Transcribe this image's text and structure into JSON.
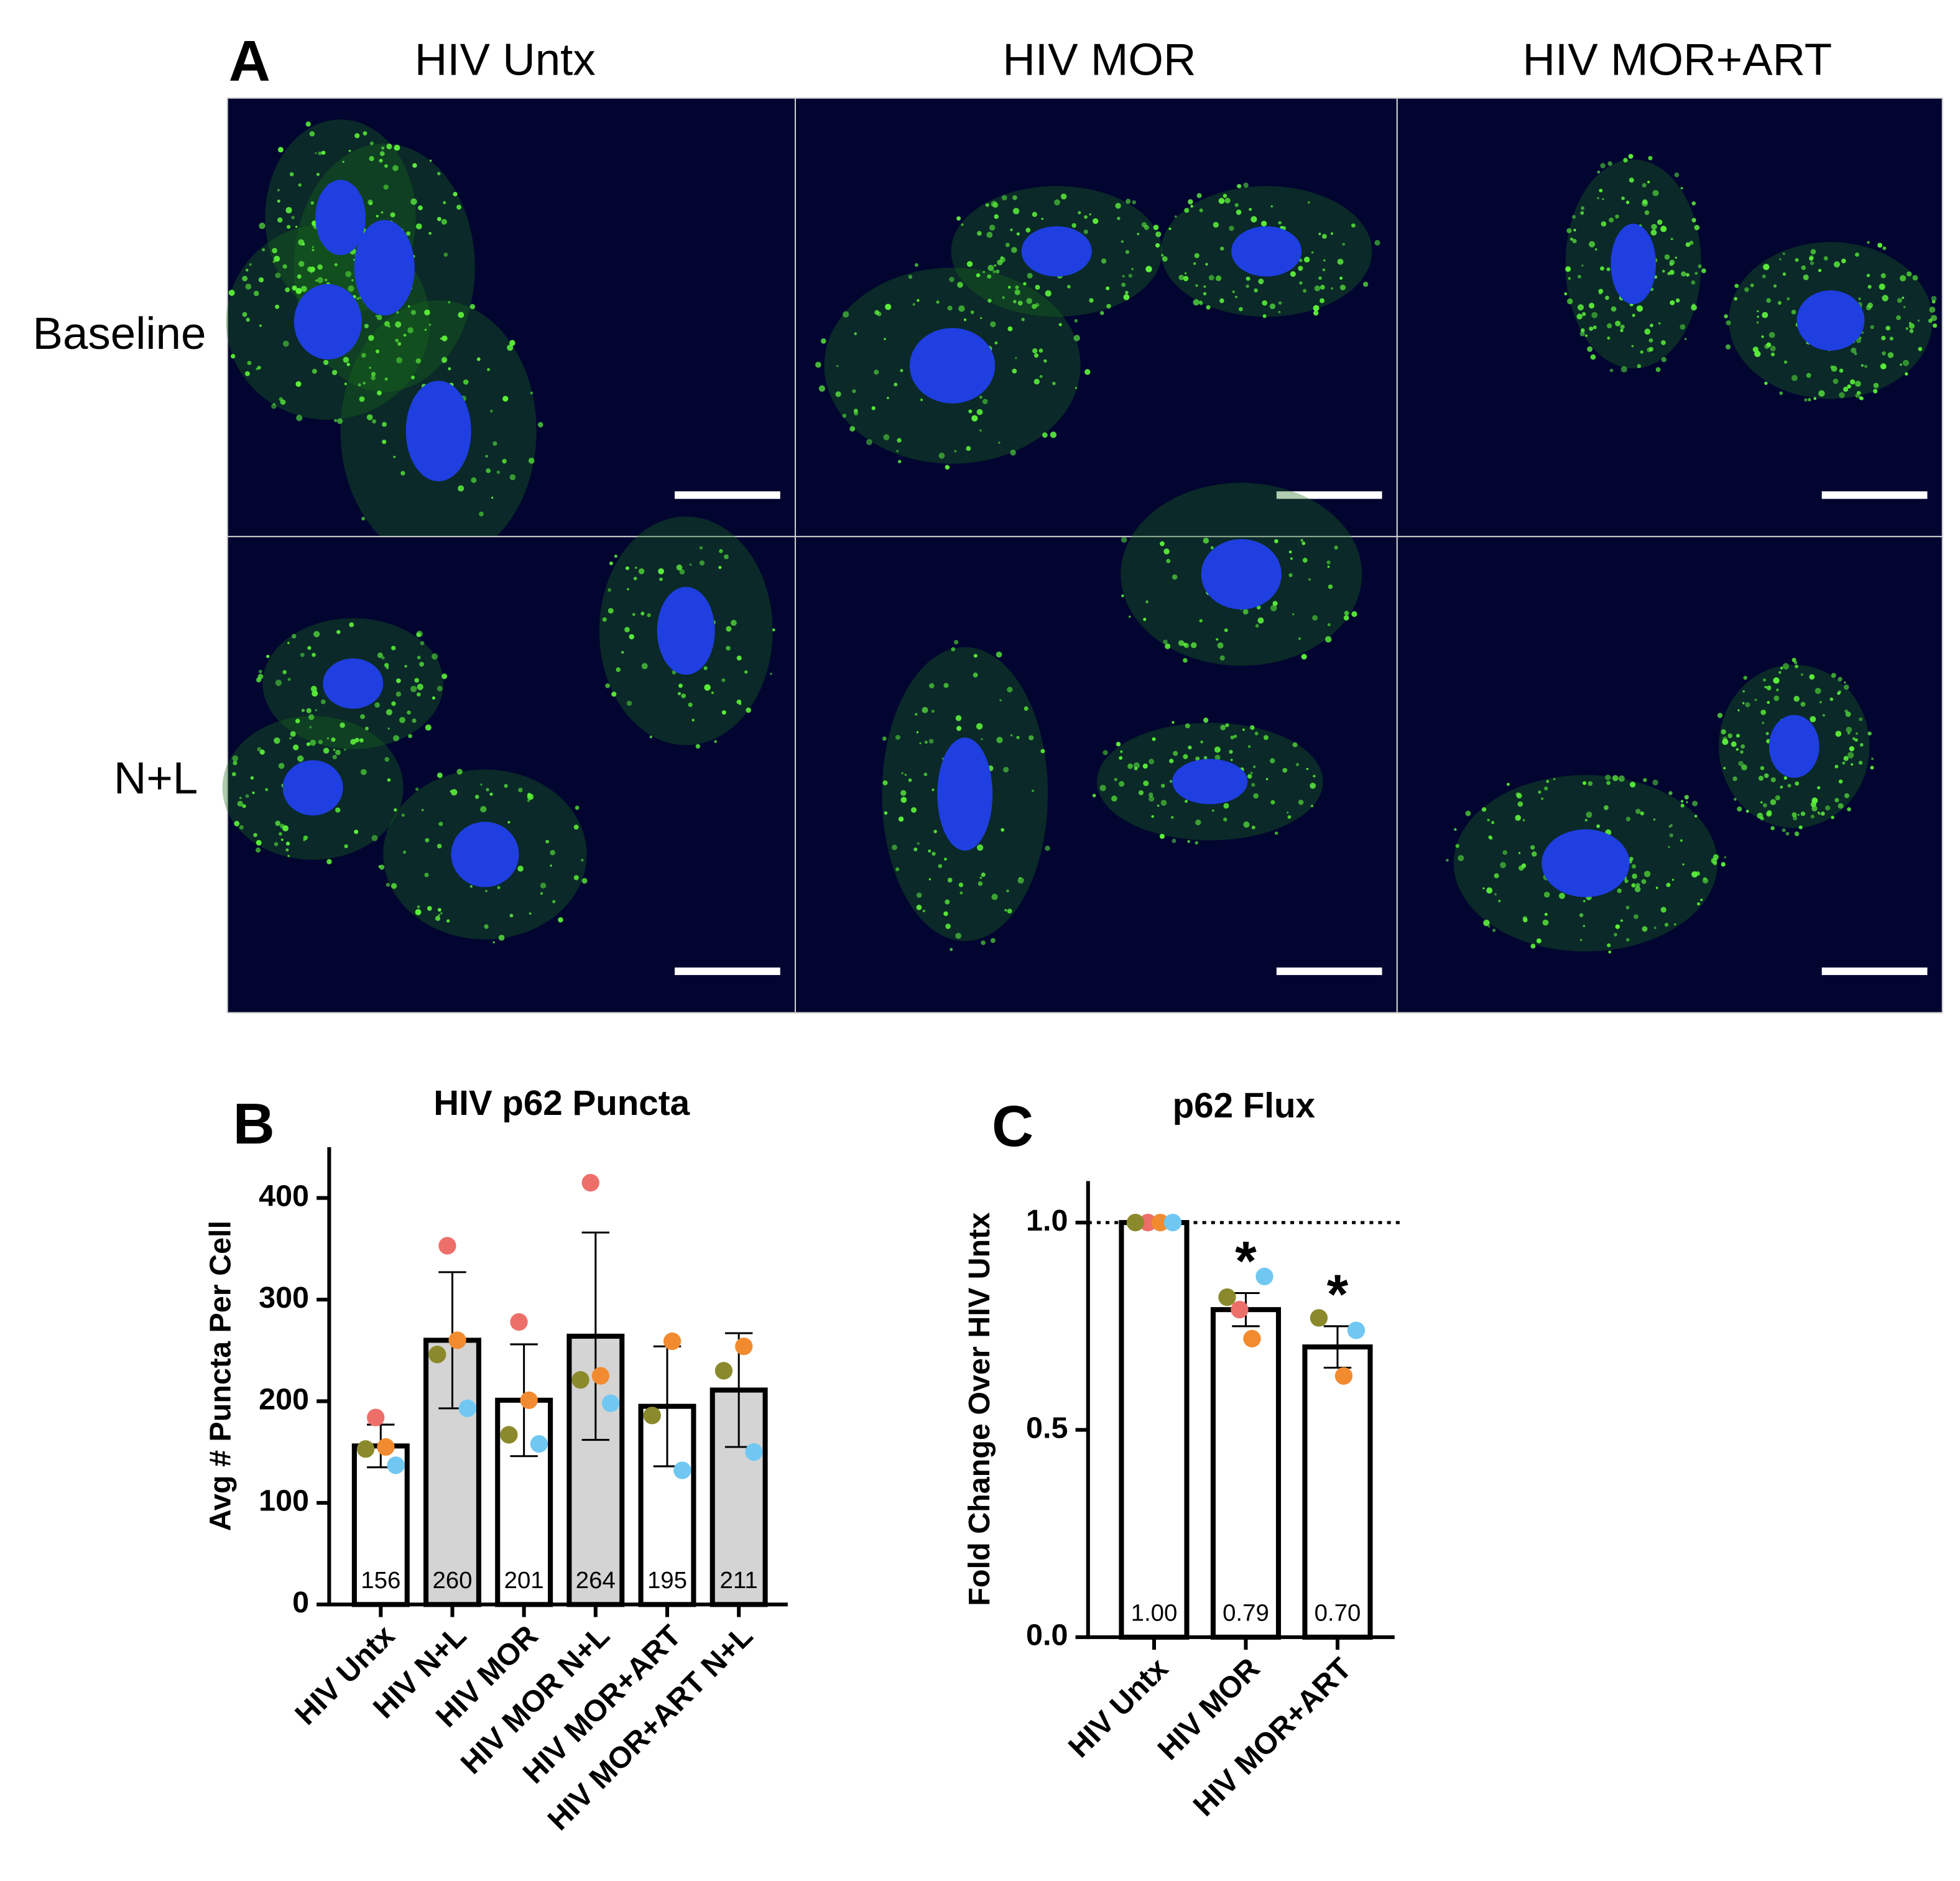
{
  "panel_a": {
    "label": "A",
    "columns": [
      "HIV Untx",
      "HIV MOR",
      "HIV MOR+ART"
    ],
    "rows": [
      "Baseline",
      "N+L"
    ]
  },
  "chart_data": [
    {
      "type": "bar",
      "panel_label": "B",
      "title": "HIV p62 Puncta",
      "y_label": "Avg # Puncta Per Cell",
      "categories": [
        "HIV Untx",
        "HIV N+L",
        "HIV MOR",
        "HIV MOR N+L",
        "HIV MOR+ART",
        "HIV MOR+ART N+L"
      ],
      "values": [
        156,
        260,
        201,
        264,
        195,
        211
      ],
      "errors": [
        21,
        67,
        55,
        102,
        59,
        56
      ],
      "bar_colors": [
        "#ffffff",
        "#d4d4d4",
        "#ffffff",
        "#d4d4d4",
        "#ffffff",
        "#d4d4d4"
      ],
      "points": [
        {
          "color": "#ec6f6a",
          "values": [
            184,
            353,
            278,
            415,
            null,
            null
          ]
        },
        {
          "color": "#f28b30",
          "values": [
            155,
            260,
            201,
            225,
            259,
            254
          ]
        },
        {
          "color": "#8a8a2c",
          "values": [
            153,
            246,
            167,
            221,
            186,
            230
          ]
        },
        {
          "color": "#70c8f2",
          "values": [
            137,
            193,
            158,
            198,
            132,
            150
          ]
        }
      ],
      "ylim": [
        0,
        450
      ],
      "yticks": [
        0,
        100,
        200,
        300,
        400
      ]
    },
    {
      "type": "bar",
      "panel_label": "C",
      "title": "p62 Flux",
      "y_label": "Fold Change Over HIV Untx",
      "categories": [
        "HIV Untx",
        "HIV MOR",
        "HIV MOR+ART"
      ],
      "values": [
        1,
        0.79,
        0.7
      ],
      "value_labels": [
        "1.00",
        "0.79",
        "0.70"
      ],
      "errors": [
        0,
        0.04,
        0.05
      ],
      "bar_colors": [
        "#ffffff",
        "#ffffff",
        "#ffffff"
      ],
      "significance": [
        null,
        "*",
        "*"
      ],
      "reference_line": 1,
      "points": [
        {
          "color": "#ec6f6a",
          "values": [
            1,
            0.79,
            null
          ]
        },
        {
          "color": "#f28b30",
          "values": [
            1,
            0.72,
            0.63
          ]
        },
        {
          "color": "#8a8a2c",
          "values": [
            1,
            0.82,
            0.77
          ]
        },
        {
          "color": "#70c8f2",
          "values": [
            1,
            0.87,
            0.74
          ]
        }
      ],
      "ylim": [
        0,
        1.1
      ],
      "yticks": [
        {
          "value": 0,
          "label": "0.0"
        },
        {
          "value": 0.5,
          "label": "0.5"
        },
        {
          "value": 1,
          "label": "1.0"
        }
      ]
    }
  ]
}
